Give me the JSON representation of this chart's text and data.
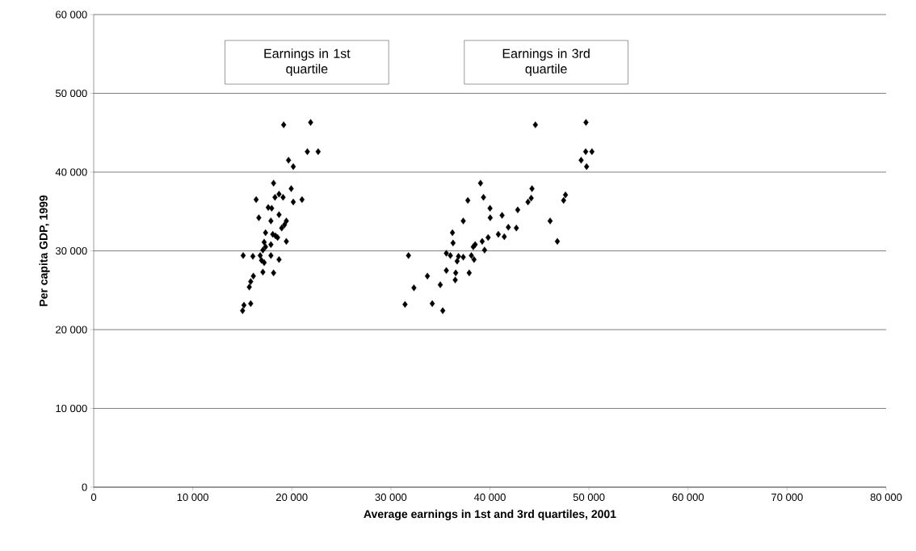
{
  "chart_data": {
    "type": "scatter",
    "xlabel": "Average earnings in 1st and 3rd quartiles, 2001",
    "ylabel": "Per capita GDP, 1999",
    "xlim": [
      0,
      80000
    ],
    "ylim": [
      0,
      60000
    ],
    "xticks": [
      0,
      {
        "value": 10000,
        "label": "10 000"
      },
      {
        "value": 20000,
        "label": "20 000"
      },
      {
        "value": 30000,
        "label": "30 000"
      },
      {
        "value": 40000,
        "label": "40 000"
      },
      {
        "value": 50000,
        "label": "50 000"
      },
      {
        "value": 60000,
        "label": "60 000"
      },
      {
        "value": 70000,
        "label": "70 000"
      },
      {
        "value": 80000,
        "label": "80 000"
      }
    ],
    "yticks": [
      0,
      {
        "value": 10000,
        "label": "10 000"
      },
      {
        "value": 20000,
        "label": "20 000"
      },
      {
        "value": 30000,
        "label": "30 000"
      },
      {
        "value": 40000,
        "label": "40 000"
      },
      {
        "value": 50000,
        "label": "50 000"
      },
      {
        "value": 60000,
        "label": "60 000"
      }
    ],
    "grid": "y",
    "marker": "diamond",
    "annotations": [
      "Earnings in 1st quartile",
      "Earnings in 3rd quartile"
    ],
    "series": [
      {
        "color": "#000000",
        "x": [
          19180,
          21900,
          21570,
          22660,
          19670,
          20150,
          18160,
          19940,
          18300,
          18710,
          19120,
          16400,
          20150,
          21030,
          17620,
          17970,
          18710,
          16670,
          17890,
          19450,
          19260,
          18980,
          17350,
          18080,
          18360,
          18570,
          19450,
          17210,
          17890,
          17350,
          17080,
          15090,
          16070,
          16810,
          17890,
          18710,
          16940,
          17210,
          17080,
          18160,
          16120,
          15850,
          15710,
          15850,
          15170,
          15030,
          44590,
          39050,
          44250,
          39350,
          37770,
          44170,
          43840,
          40010,
          42810,
          40030,
          41230,
          37310,
          41860,
          42670,
          36220,
          40850,
          41450,
          39820,
          36280,
          39220,
          38510,
          38320,
          39460,
          31780,
          35600,
          36010,
          36830,
          37310,
          38130,
          38400,
          36690,
          33690,
          35600,
          36550,
          37910,
          36500,
          32330,
          34990,
          31430,
          34180,
          35240,
          49700,
          49670,
          50300,
          49210,
          49760,
          47630,
          47440,
          46080,
          46810
        ],
        "values": [
          46000,
          46300,
          42600,
          42600,
          41500,
          40700,
          38600,
          37900,
          36800,
          37200,
          36800,
          36500,
          36200,
          36500,
          35500,
          35400,
          34600,
          34200,
          33800,
          33800,
          33300,
          32900,
          32300,
          32100,
          31900,
          31700,
          31200,
          31100,
          30800,
          30500,
          30100,
          29400,
          29300,
          29400,
          29400,
          28900,
          28800,
          28500,
          27300,
          27200,
          26800,
          26100,
          25400,
          23300,
          23100,
          22400,
          46000,
          38600,
          37900,
          36800,
          36400,
          36700,
          36200,
          35400,
          35200,
          34200,
          34500,
          33800,
          33000,
          32900,
          32300,
          32100,
          31800,
          31700,
          31000,
          31200,
          30800,
          30500,
          30100,
          29400,
          29700,
          29400,
          29300,
          29200,
          29400,
          28900,
          28700,
          26800,
          27500,
          27200,
          27200,
          26300,
          25300,
          25700,
          23200,
          23300,
          22400,
          46300,
          42600,
          42600,
          41500,
          40700,
          37100,
          36400,
          33800,
          31200
        ]
      }
    ]
  }
}
